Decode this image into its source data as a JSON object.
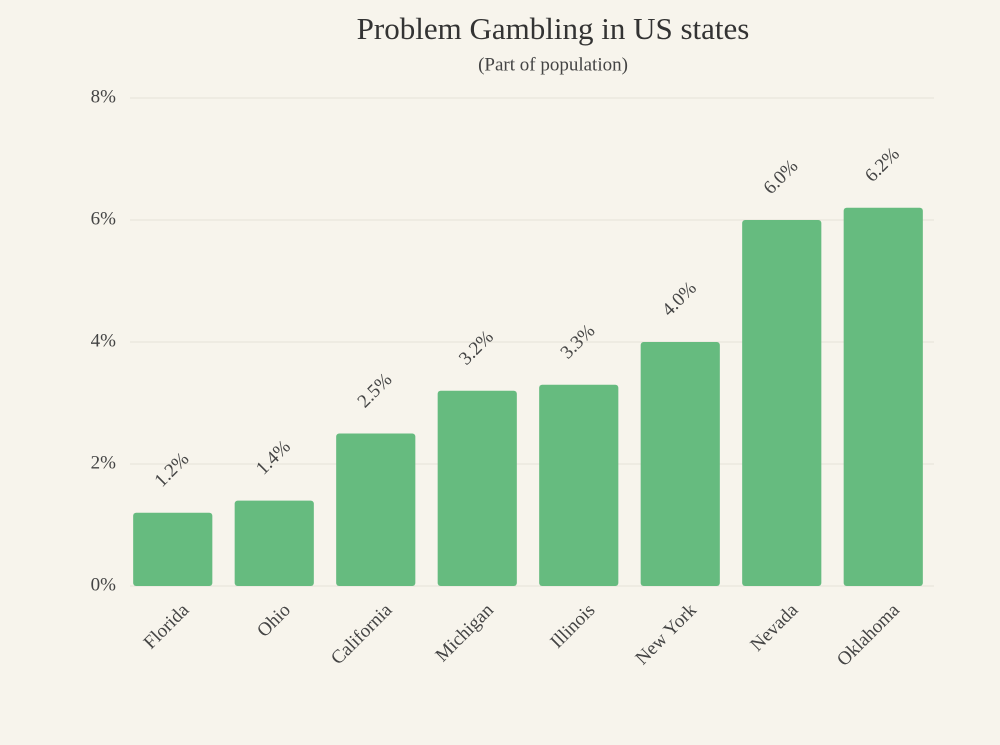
{
  "chart_data": {
    "type": "bar",
    "title": "Problem Gambling in US states",
    "subtitle": "(Part of population)",
    "categories": [
      "Florida",
      "Ohio",
      "California",
      "Michigan",
      "Illinois",
      "New York",
      "Nevada",
      "Oklahoma"
    ],
    "values": [
      1.2,
      1.4,
      2.5,
      3.2,
      3.3,
      4.0,
      6.0,
      6.2
    ],
    "value_labels": [
      "1.2%",
      "1.4%",
      "2.5%",
      "3.2%",
      "3.3%",
      "4.0%",
      "6.0%",
      "6.2%"
    ],
    "color": "#66bb7f",
    "ylim": [
      0,
      8
    ],
    "yticks": [
      {
        "value": 0,
        "label": "0%"
      },
      {
        "value": 2,
        "label": "2%"
      },
      {
        "value": 4,
        "label": "4%"
      },
      {
        "value": 6,
        "label": "6%"
      },
      {
        "value": 8,
        "label": "8%"
      }
    ],
    "grid": true
  }
}
